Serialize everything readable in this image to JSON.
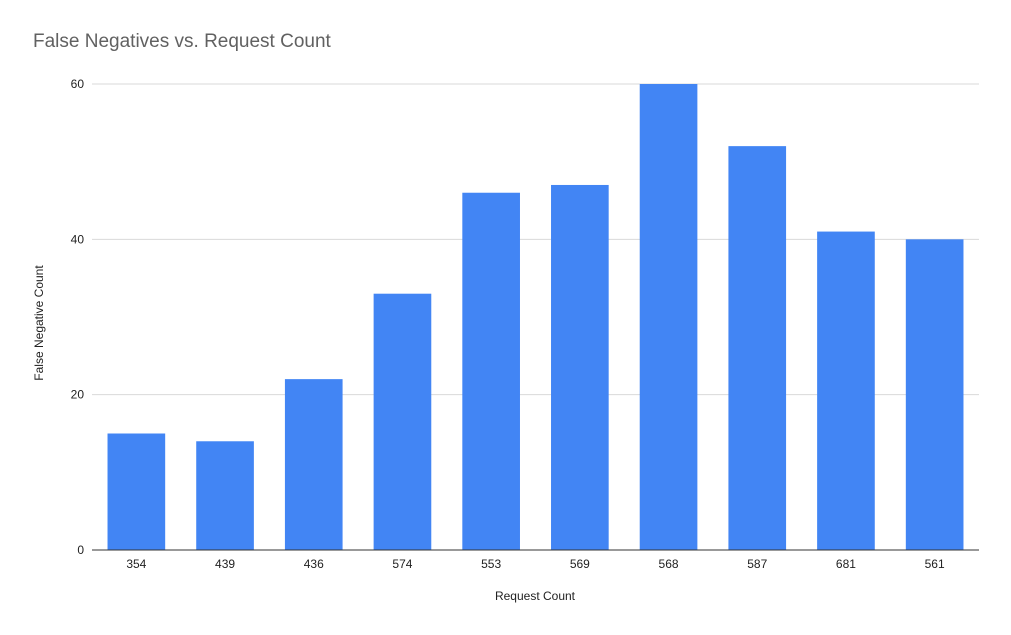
{
  "chart_data": {
    "type": "bar",
    "title": "False Negatives vs. Request Count",
    "xlabel": "Request Count",
    "ylabel": "False Negative Count",
    "categories": [
      "354",
      "439",
      "436",
      "574",
      "553",
      "569",
      "568",
      "587",
      "681",
      "561"
    ],
    "values": [
      15,
      14,
      22,
      33,
      46,
      47,
      60,
      52,
      41,
      40
    ],
    "ylim": [
      0,
      60
    ],
    "yticks": [
      "0",
      "20",
      "40",
      "60"
    ],
    "grid": true,
    "legend": "none"
  },
  "colors": {
    "bar": "#4285f4",
    "grid": "#d9d9d9",
    "axis": "#333333",
    "title": "#616161"
  }
}
